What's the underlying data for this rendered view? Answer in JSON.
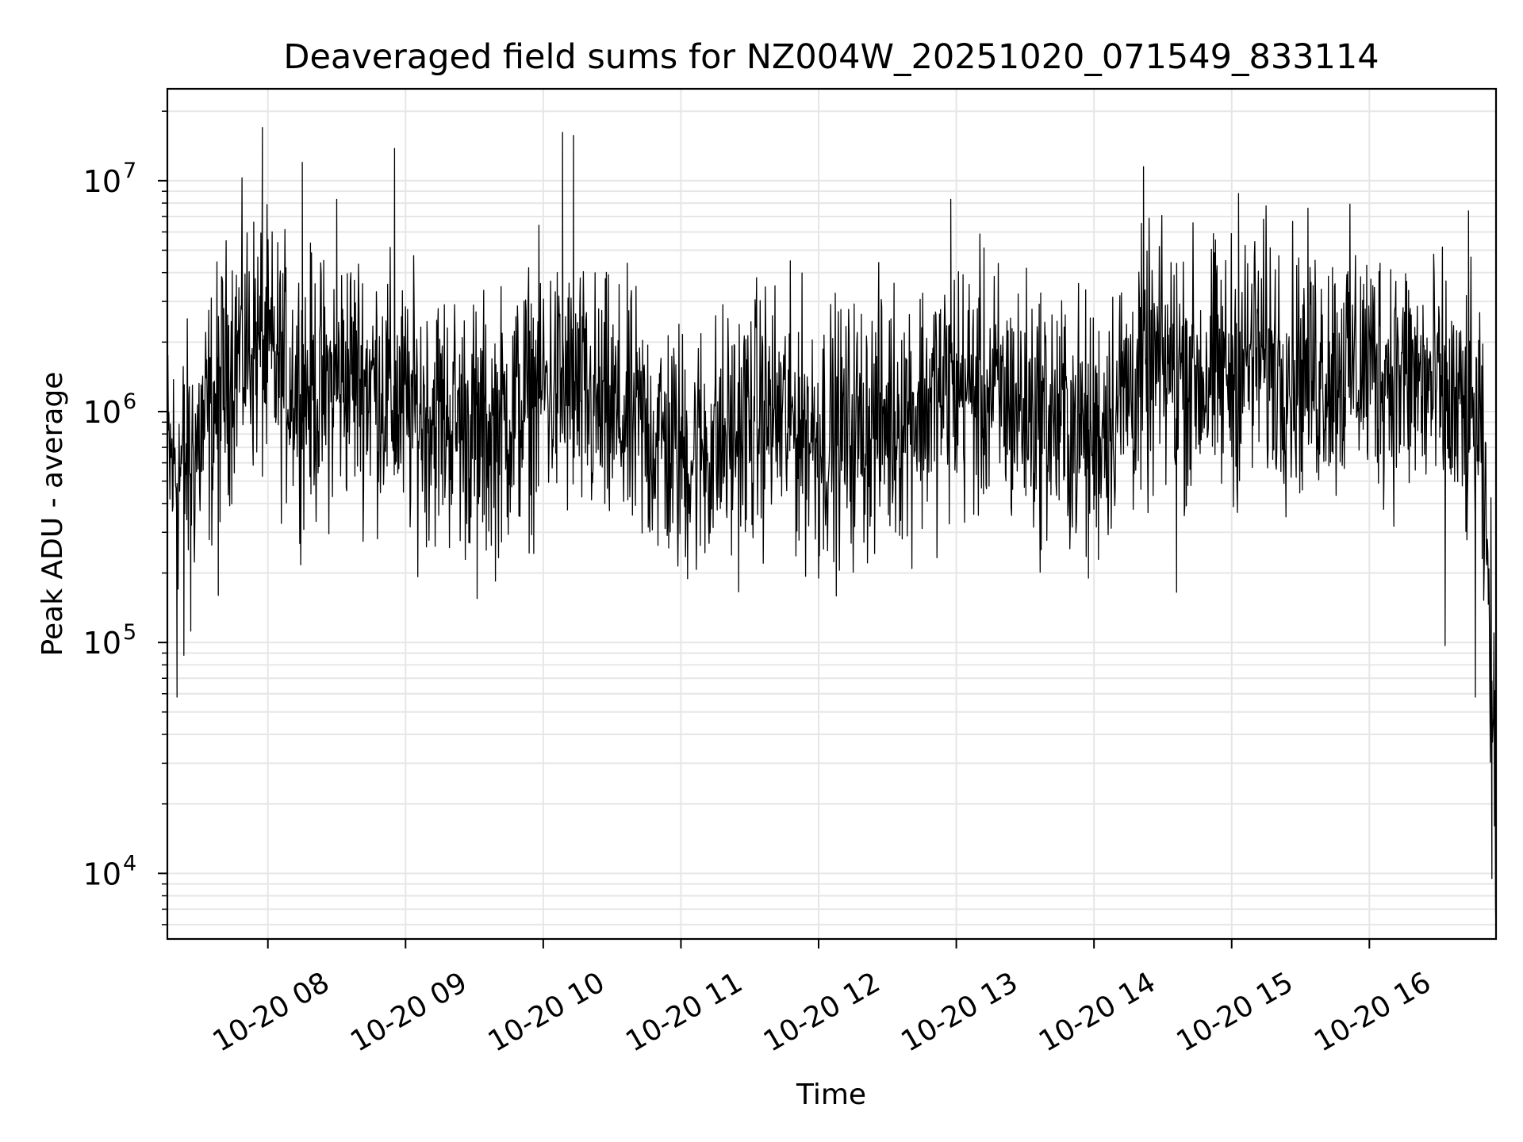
{
  "chart_data": {
    "type": "line",
    "title": "Deaveraged field sums for NZ004W_20251020_071549_833114",
    "xlabel": "Time",
    "ylabel": "Peak ADU - average",
    "yscale": "log",
    "ylim": [
      5200,
      25000000
    ],
    "xlim": [
      7.27,
      16.92
    ],
    "grid": true,
    "line_color": "#000000",
    "x_ticks": [
      {
        "value": 8,
        "label": "10-20 08"
      },
      {
        "value": 9,
        "label": "10-20 09"
      },
      {
        "value": 10,
        "label": "10-20 10"
      },
      {
        "value": 11,
        "label": "10-20 11"
      },
      {
        "value": 12,
        "label": "10-20 12"
      },
      {
        "value": 13,
        "label": "10-20 13"
      },
      {
        "value": 14,
        "label": "10-20 14"
      },
      {
        "value": 15,
        "label": "10-20 15"
      },
      {
        "value": 16,
        "label": "10-20 16"
      }
    ],
    "y_ticks": [
      {
        "value": 10000,
        "base": "10",
        "exp": "4"
      },
      {
        "value": 100000,
        "base": "10",
        "exp": "5"
      },
      {
        "value": 1000000,
        "base": "10",
        "exp": "6"
      },
      {
        "value": 10000000,
        "base": "10",
        "exp": "7"
      }
    ],
    "series": [
      {
        "name": "Peak ADU - average",
        "x_hours": [
          7.27,
          7.35,
          7.45,
          7.6,
          7.75,
          7.9,
          8.0,
          8.1,
          8.25,
          8.4,
          8.6,
          8.8,
          9.0,
          9.2,
          9.4,
          9.6,
          9.8,
          10.0,
          10.2,
          10.4,
          10.6,
          10.8,
          11.0,
          11.2,
          11.4,
          11.6,
          11.8,
          12.0,
          12.2,
          12.4,
          12.6,
          12.8,
          13.0,
          13.2,
          13.4,
          13.6,
          13.8,
          14.0,
          14.2,
          14.4,
          14.6,
          14.8,
          15.0,
          15.2,
          15.4,
          15.6,
          15.8,
          16.0,
          16.2,
          16.4,
          16.55,
          16.7,
          16.75,
          16.8,
          16.85,
          16.88,
          16.9,
          16.92
        ],
        "typical": [
          600000,
          550000,
          650000,
          1000000,
          1800000,
          2000000,
          1700000,
          1500000,
          1300000,
          1200000,
          1500000,
          1300000,
          1000000,
          1000000,
          900000,
          800000,
          1000000,
          1300000,
          1200000,
          1000000,
          900000,
          800000,
          650000,
          700000,
          800000,
          1000000,
          900000,
          800000,
          800000,
          900000,
          1000000,
          1100000,
          1300000,
          1200000,
          1100000,
          1000000,
          900000,
          800000,
          1200000,
          1500000,
          1600000,
          1400000,
          1500000,
          1800000,
          1600000,
          1500000,
          1600000,
          1600000,
          1500000,
          1300000,
          1100000,
          900000,
          900000,
          800000,
          250000,
          120000,
          40000,
          12000
        ],
        "spikes": [
          {
            "x": 7.96,
            "y": 17000000
          },
          {
            "x": 8.25,
            "y": 12000000
          },
          {
            "x": 8.5,
            "y": 8300000
          },
          {
            "x": 8.92,
            "y": 13800000
          },
          {
            "x": 10.14,
            "y": 16200000
          },
          {
            "x": 10.22,
            "y": 15700000
          },
          {
            "x": 12.96,
            "y": 8300000
          },
          {
            "x": 14.36,
            "y": 11500000
          },
          {
            "x": 15.05,
            "y": 8800000
          },
          {
            "x": 16.72,
            "y": 7400000
          }
        ],
        "dips": [
          {
            "x": 7.34,
            "y": 58000
          },
          {
            "x": 7.39,
            "y": 88000
          },
          {
            "x": 7.44,
            "y": 112000
          },
          {
            "x": 7.64,
            "y": 160000
          },
          {
            "x": 9.52,
            "y": 155000
          },
          {
            "x": 12.0,
            "y": 190000
          },
          {
            "x": 13.96,
            "y": 190000
          },
          {
            "x": 14.6,
            "y": 165000
          },
          {
            "x": 16.55,
            "y": 97000
          },
          {
            "x": 16.77,
            "y": 58000
          },
          {
            "x": 16.89,
            "y": 9500
          },
          {
            "x": 16.92,
            "y": 7600
          }
        ]
      }
    ]
  }
}
